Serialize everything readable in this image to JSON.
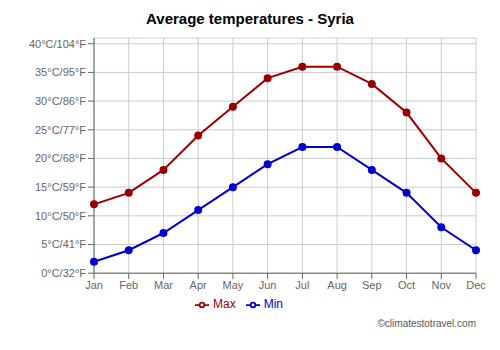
{
  "chart_data": {
    "type": "line",
    "title": "Average temperatures - Syria",
    "categories": [
      "Jan",
      "Feb",
      "Mar",
      "Apr",
      "May",
      "Jun",
      "Jul",
      "Aug",
      "Sep",
      "Oct",
      "Nov",
      "Dec"
    ],
    "series": [
      {
        "name": "Min",
        "color": "#0000cc",
        "values": [
          2,
          4,
          7,
          11,
          15,
          19,
          22,
          22,
          18,
          14,
          8,
          4
        ]
      },
      {
        "name": "Max",
        "color": "#990000",
        "values": [
          12,
          14,
          18,
          24,
          29,
          34,
          36,
          36,
          33,
          28,
          20,
          14
        ]
      }
    ],
    "ylim": [
      0,
      41
    ],
    "yticks": [
      {
        "value": 0,
        "label": "0°C/32°F"
      },
      {
        "value": 5,
        "label": "5°C/41°F"
      },
      {
        "value": 10,
        "label": "10°C/50°F"
      },
      {
        "value": 15,
        "label": "15°C/59°F"
      },
      {
        "value": 20,
        "label": "20°C/68°F"
      },
      {
        "value": 25,
        "label": "25°C/77°F"
      },
      {
        "value": 30,
        "label": "30°C/86°F"
      },
      {
        "value": 35,
        "label": "35°C/95°F"
      },
      {
        "value": 40,
        "label": "40°C/104°F"
      }
    ],
    "grid": true,
    "legend": "bottom",
    "marker": "circle",
    "annotations": [
      "©climatestotravel.com"
    ]
  }
}
